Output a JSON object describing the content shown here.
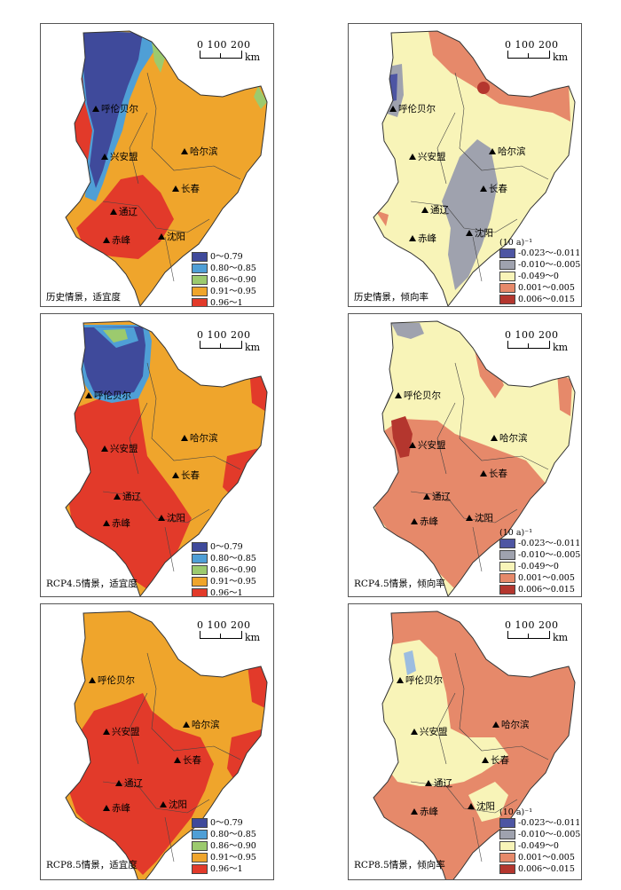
{
  "scale_bar": {
    "ticks": "0  100 200",
    "unit": "km"
  },
  "legends": {
    "suitability": {
      "items": [
        {
          "label": "0～0.79",
          "color": "#3f4a9b"
        },
        {
          "label": "0.80～0.85",
          "color": "#4f9fd6"
        },
        {
          "label": "0.86～0.90",
          "color": "#9cca6e"
        },
        {
          "label": "0.91～0.95",
          "color": "#efa52c"
        },
        {
          "label": "0.96～1",
          "color": "#e23a2a"
        }
      ]
    },
    "trend": {
      "header": "(10 a)⁻¹",
      "items": [
        {
          "label": "-0.023～-0.011",
          "color": "#4d55a3"
        },
        {
          "label": "-0.010～-0.005",
          "color": "#9fa2ae"
        },
        {
          "label": "-0.049～0",
          "color": "#f8f4b8"
        },
        {
          "label": "0.001～0.005",
          "color": "#e6896a"
        },
        {
          "label": "0.006～0.015",
          "color": "#b4362e"
        }
      ]
    }
  },
  "cities": [
    "呼伦贝尔",
    "兴安盟",
    "哈尔滨",
    "长春",
    "通辽",
    "沈阳",
    "赤峰"
  ],
  "panels": [
    {
      "caption": "历史情景，适宜度"
    },
    {
      "caption": "历史情景，倾向率"
    },
    {
      "caption": "RCP4.5情景，适宜度"
    },
    {
      "caption": "RCP4.5情景，倾向率"
    },
    {
      "caption": "RCP8.5情景，适宜度"
    },
    {
      "caption": "RCP8.5情景，倾向率"
    }
  ]
}
